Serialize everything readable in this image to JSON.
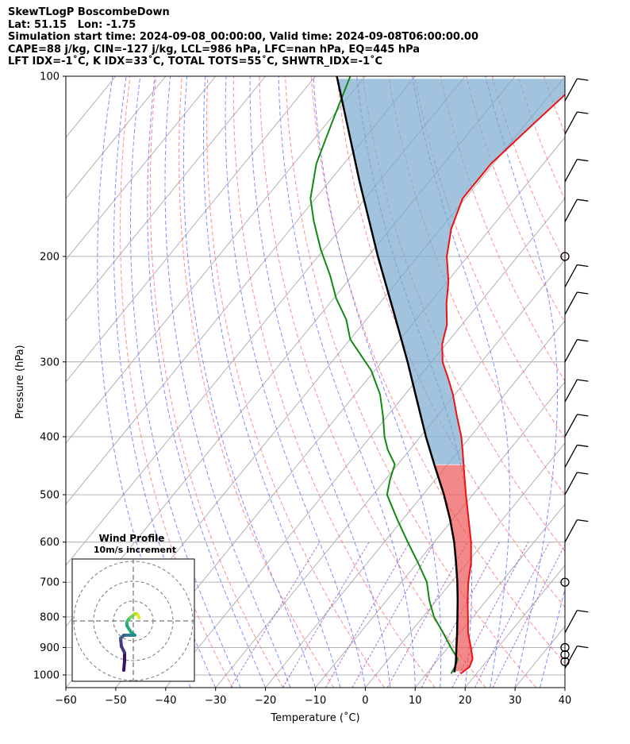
{
  "header": {
    "line1": "SkewTLogP BoscombeDown",
    "line2": "Lat: 51.15   Lon: -1.75",
    "line3": "Simulation start time: 2024-09-08_00:00:00, Valid time: 2024-09-08T06:00:00.00",
    "line4": "CAPE=88 j/kg, CIN=-127 j/kg, LCL=986 hPa, LFC=nan hPa, EQ=445 hPa",
    "line5": "LFT IDX=-1˚C, K IDX=33˚C, TOTAL TOTS=55˚C, SHWTR_IDX=-1˚C"
  },
  "colors": {
    "temperature": "#ee1111",
    "dewpoint": "#118811",
    "parcel": "#000000",
    "cape_fill": "#7ba9cf",
    "cin_fill": "#ee5555",
    "dry_adiabat": "#ff6666",
    "moist_adiabat": "#5566ff",
    "mixing_ratio": "#a050c8",
    "isotherm": "#aaaaaa"
  },
  "chart_data": {
    "type": "line",
    "title": "",
    "xlabel": "Temperature (˚C)",
    "ylabel": "Pressure (hPa)",
    "xlim": [
      -60,
      40
    ],
    "ylim": [
      1050,
      100
    ],
    "y_scale": "log",
    "x_ticks": [
      "−60",
      "−50",
      "−40",
      "−30",
      "−20",
      "−10",
      "0",
      "10",
      "20",
      "30",
      "40"
    ],
    "y_ticks": [
      "100",
      "200",
      "300",
      "400",
      "500",
      "600",
      "700",
      "800",
      "900",
      "1000"
    ],
    "grid": true,
    "skew": true,
    "series": [
      {
        "name": "Temperature",
        "p": [
          995,
          970,
          940,
          900,
          850,
          800,
          750,
          700,
          650,
          600,
          550,
          500,
          450,
          420,
          400,
          370,
          340,
          320,
          300,
          280,
          260,
          240,
          220,
          200,
          180,
          160,
          140,
          120,
          100
        ],
        "t": [
          16.8,
          17.5,
          16.8,
          14.6,
          11.6,
          9.0,
          6.2,
          3.4,
          0.8,
          -2.6,
          -6.8,
          -11.4,
          -16.3,
          -19.5,
          -21.8,
          -26.0,
          -30.4,
          -33.9,
          -37.8,
          -40.8,
          -43.0,
          -46.5,
          -49.8,
          -54.2,
          -57.8,
          -60.5,
          -60.5,
          -58.5,
          -56.0
        ]
      },
      {
        "name": "Dewpoint",
        "p": [
          995,
          970,
          940,
          900,
          850,
          800,
          750,
          700,
          650,
          600,
          550,
          500,
          470,
          445,
          420,
          400,
          370,
          340,
          310,
          275,
          255,
          235,
          215,
          195,
          175,
          160,
          140,
          120,
          100
        ],
        "t": [
          14.9,
          14.6,
          13.8,
          10.6,
          6.6,
          2.2,
          -1.5,
          -4.9,
          -9.8,
          -15.3,
          -21.1,
          -27.2,
          -29.2,
          -30.6,
          -34.5,
          -37.2,
          -40.8,
          -45.0,
          -50.7,
          -60.0,
          -64.0,
          -69.5,
          -74.5,
          -80.5,
          -86.5,
          -91.0,
          -95.5,
          -99.0,
          -103.0
        ]
      },
      {
        "name": "Parcel",
        "p": [
          990,
          986,
          950,
          900,
          850,
          800,
          750,
          700,
          650,
          600,
          550,
          500,
          445,
          400,
          350,
          300,
          250,
          200,
          150,
          100
        ],
        "t": [
          15.4,
          15.2,
          13.9,
          11.7,
          9.4,
          6.9,
          4.2,
          1.2,
          -2.2,
          -6.0,
          -10.5,
          -15.8,
          -22.7,
          -28.9,
          -36.3,
          -44.8,
          -55.2,
          -68.0,
          -83.9,
          -105.7
        ]
      }
    ],
    "wind_barbs": [
      {
        "p": 975,
        "shown": true
      },
      {
        "p": 950,
        "shown": "calm"
      },
      {
        "p": 925,
        "shown": "calm"
      },
      {
        "p": 900,
        "shown": "calm"
      },
      {
        "p": 850,
        "shown": true
      },
      {
        "p": 700,
        "shown": "calm"
      },
      {
        "p": 600,
        "shown": true
      },
      {
        "p": 500,
        "shown": true
      },
      {
        "p": 450,
        "shown": true
      },
      {
        "p": 400,
        "shown": true
      },
      {
        "p": 350,
        "shown": true
      },
      {
        "p": 300,
        "shown": true
      },
      {
        "p": 250,
        "shown": true
      },
      {
        "p": 225,
        "shown": true
      },
      {
        "p": 200,
        "shown": "calm"
      },
      {
        "p": 175,
        "shown": true
      },
      {
        "p": 150,
        "shown": true
      },
      {
        "p": 125,
        "shown": true
      },
      {
        "p": 110,
        "shown": true
      }
    ],
    "inset": {
      "title": "Wind Profile",
      "subtitle": "10m/s increment",
      "type": "hodograph"
    }
  }
}
